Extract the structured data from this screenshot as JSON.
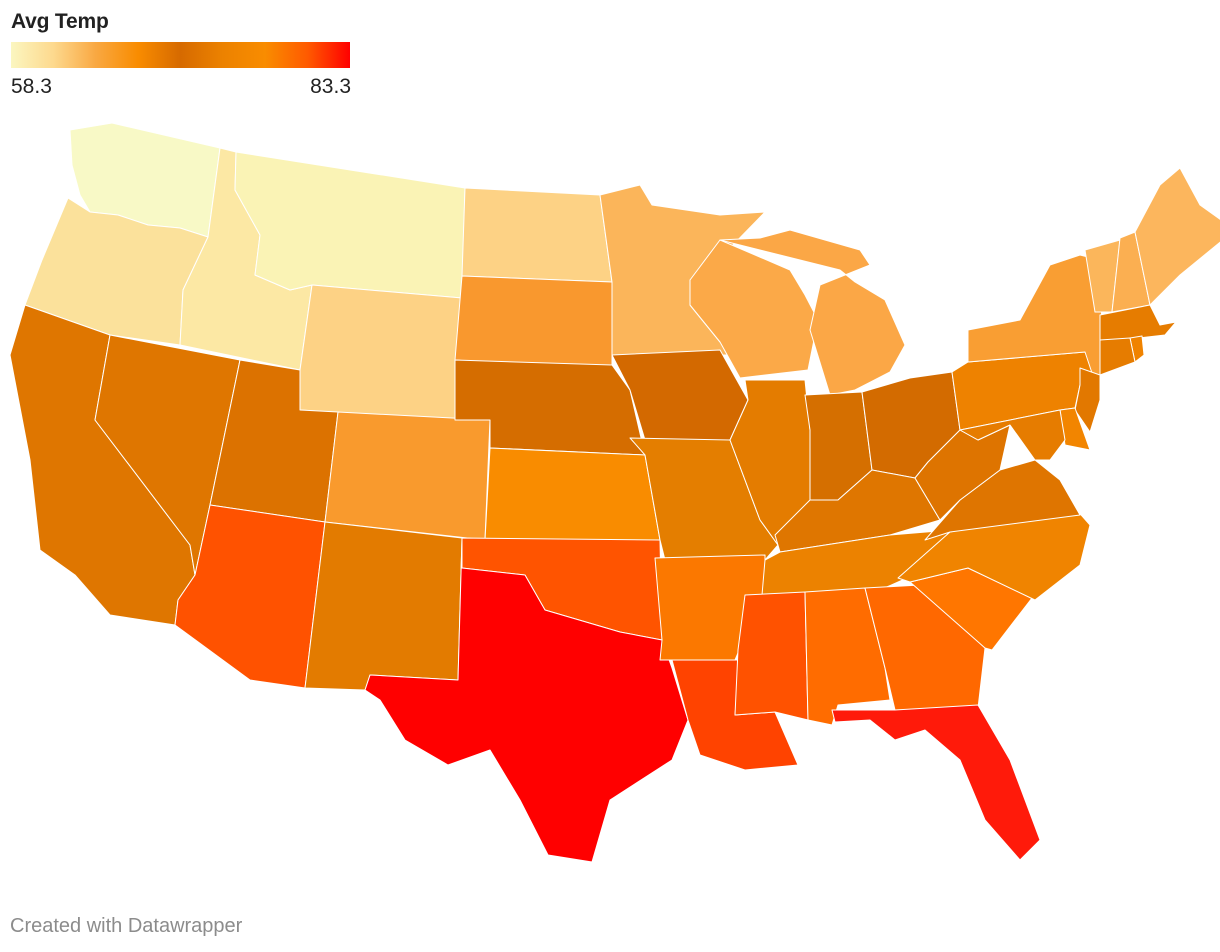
{
  "legend": {
    "title": "Avg Temp",
    "min_label": "58.3",
    "max_label": "83.3",
    "gradient_colors": [
      "#fbf6c0",
      "#fdd98e",
      "#f9a842",
      "#f98c00",
      "#d66a00",
      "#ec8200",
      "#f98c00",
      "#ff5a00",
      "#ff0000"
    ]
  },
  "map_data": {
    "measure": "Avg Temp",
    "scale": {
      "min": 58.3,
      "max": 83.3
    },
    "states": [
      {
        "id": "WA",
        "value": 58.3,
        "color": "#f8f9c6"
      },
      {
        "id": "OR",
        "value": 63.0,
        "color": "#fbe19b"
      },
      {
        "id": "ID",
        "value": 61.5,
        "color": "#fce8a4"
      },
      {
        "id": "MT",
        "value": 60.0,
        "color": "#faf3b5"
      },
      {
        "id": "WY",
        "value": 64.5,
        "color": "#fdd285"
      },
      {
        "id": "ND",
        "value": 64.5,
        "color": "#fdd285"
      },
      {
        "id": "SD",
        "value": 70.0,
        "color": "#f9982e"
      },
      {
        "id": "MN",
        "value": 67.0,
        "color": "#fbb55a"
      },
      {
        "id": "WI",
        "value": 68.0,
        "color": "#fba948"
      },
      {
        "id": "MI",
        "value": 68.5,
        "color": "#fba746"
      },
      {
        "id": "CA",
        "value": 74.0,
        "color": "#df7600"
      },
      {
        "id": "NV",
        "value": 74.0,
        "color": "#df7600"
      },
      {
        "id": "UT",
        "value": 74.0,
        "color": "#dc7200"
      },
      {
        "id": "AZ",
        "value": 80.0,
        "color": "#ff5200"
      },
      {
        "id": "CO",
        "value": 70.0,
        "color": "#f99a2d"
      },
      {
        "id": "NM",
        "value": 74.0,
        "color": "#e37b00"
      },
      {
        "id": "NE",
        "value": 75.0,
        "color": "#d56d00"
      },
      {
        "id": "KS",
        "value": 76.0,
        "color": "#f98c00"
      },
      {
        "id": "OK",
        "value": 80.0,
        "color": "#ff5400"
      },
      {
        "id": "TX",
        "value": 83.3,
        "color": "#ff0000"
      },
      {
        "id": "IA",
        "value": 75.5,
        "color": "#d36900"
      },
      {
        "id": "MO",
        "value": 75.0,
        "color": "#e47e00"
      },
      {
        "id": "AR",
        "value": 77.5,
        "color": "#fb7800"
      },
      {
        "id": "LA",
        "value": 80.5,
        "color": "#ff4300"
      },
      {
        "id": "IL",
        "value": 74.5,
        "color": "#e47c00"
      },
      {
        "id": "IN",
        "value": 75.0,
        "color": "#d56f00"
      },
      {
        "id": "OH",
        "value": 75.0,
        "color": "#d36b00"
      },
      {
        "id": "KY",
        "value": 74.5,
        "color": "#df7600"
      },
      {
        "id": "TN",
        "value": 76.0,
        "color": "#ec8200"
      },
      {
        "id": "MS",
        "value": 80.0,
        "color": "#ff5200"
      },
      {
        "id": "AL",
        "value": 78.5,
        "color": "#ff6c00"
      },
      {
        "id": "GA",
        "value": 79.0,
        "color": "#ff6800"
      },
      {
        "id": "FL",
        "value": 82.5,
        "color": "#ff1a0a"
      },
      {
        "id": "SC",
        "value": 78.0,
        "color": "#ff7600"
      },
      {
        "id": "NC",
        "value": 76.0,
        "color": "#f08400"
      },
      {
        "id": "VA",
        "value": 74.5,
        "color": "#df7500"
      },
      {
        "id": "WV",
        "value": 74.0,
        "color": "#de7400"
      },
      {
        "id": "PA",
        "value": 72.0,
        "color": "#ee8200"
      },
      {
        "id": "NY",
        "value": 70.0,
        "color": "#f99e33"
      },
      {
        "id": "VT",
        "value": 67.5,
        "color": "#fbb65b"
      },
      {
        "id": "NH",
        "value": 67.0,
        "color": "#fbaf51"
      },
      {
        "id": "ME",
        "value": 66.0,
        "color": "#fcb65d"
      },
      {
        "id": "MA",
        "value": 73.5,
        "color": "#e67c00"
      },
      {
        "id": "RI",
        "value": 74.0,
        "color": "#f08300"
      },
      {
        "id": "CT",
        "value": 73.5,
        "color": "#e67c00"
      },
      {
        "id": "NJ",
        "value": 74.0,
        "color": "#e27800"
      },
      {
        "id": "DE",
        "value": 75.0,
        "color": "#f28500"
      },
      {
        "id": "MD",
        "value": 74.5,
        "color": "#e67c00"
      }
    ]
  },
  "footer": {
    "credit": "Created with Datawrapper"
  }
}
